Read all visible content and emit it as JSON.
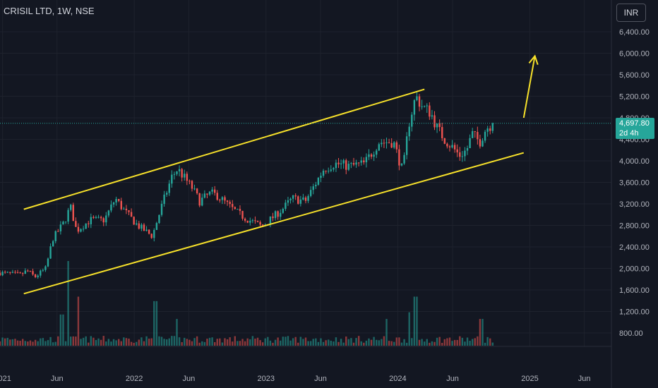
{
  "header": {
    "title": "CRISIL LTD, 1W, NSE",
    "currency": "INR"
  },
  "last_price": {
    "value": "4,697.80",
    "countdown": "2d 4h",
    "color": "#26a69a"
  },
  "colors": {
    "up": "#26a69a",
    "down": "#ef5350",
    "channel": "#f7e12a",
    "background": "#131722",
    "grid": "#1e222d"
  },
  "chart_data": {
    "type": "candlestick",
    "title": "CRISIL LTD, 1W, NSE",
    "price_ticks": [
      "6,400.00",
      "6,000.00",
      "5,600.00",
      "5,200.00",
      "4,800.00",
      "4,400.00",
      "4,000.00",
      "3,600.00",
      "3,200.00",
      "2,800.00",
      "2,400.00",
      "2,000.00",
      "1,600.00",
      "1,200.00",
      "800.00"
    ],
    "price_tick_values": [
      6400,
      6000,
      5600,
      5200,
      4800,
      4400,
      4000,
      3600,
      3200,
      2800,
      2400,
      2000,
      1600,
      1200,
      800
    ],
    "ylim": [
      800,
      6700
    ],
    "time_ticks": [
      "2021",
      "Jun",
      "2022",
      "Jun",
      "2023",
      "Jun",
      "2024",
      "Jun",
      "2025",
      "Jun"
    ],
    "time_tick_dates": [
      "2021-01-01",
      "2021-06-01",
      "2022-01-01",
      "2022-06-01",
      "2023-01-01",
      "2023-06-01",
      "2024-01-01",
      "2024-06-01",
      "2025-01-01",
      "2025-06-01"
    ],
    "xlim": [
      "2020-12-25",
      "2025-08-15"
    ],
    "close_series": [
      [
        "2020-12-25",
        1920
      ],
      [
        "2021-01-20",
        1900
      ],
      [
        "2021-02-20",
        1880
      ],
      [
        "2021-03-10",
        1960
      ],
      [
        "2021-04-01",
        1840
      ],
      [
        "2021-05-01",
        2000
      ],
      [
        "2021-05-20",
        2550
      ],
      [
        "2021-06-20",
        2850
      ],
      [
        "2021-07-08",
        3150
      ],
      [
        "2021-07-25",
        2700
      ],
      [
        "2021-09-01",
        2900
      ],
      [
        "2021-10-10",
        2900
      ],
      [
        "2021-11-10",
        3300
      ],
      [
        "2021-12-01",
        3100
      ],
      [
        "2022-01-10",
        2800
      ],
      [
        "2022-02-20",
        2600
      ],
      [
        "2022-03-20",
        3200
      ],
      [
        "2022-04-15",
        3700
      ],
      [
        "2022-05-01",
        3850
      ],
      [
        "2022-06-10",
        3500
      ],
      [
        "2022-07-01",
        3250
      ],
      [
        "2022-08-01",
        3400
      ],
      [
        "2022-08-20",
        3350
      ],
      [
        "2022-10-01",
        3100
      ],
      [
        "2022-11-01",
        2950
      ],
      [
        "2022-12-20",
        2780
      ],
      [
        "2023-01-20",
        2950
      ],
      [
        "2023-02-15",
        3100
      ],
      [
        "2023-03-15",
        3300
      ],
      [
        "2023-04-20",
        3250
      ],
      [
        "2023-05-20",
        3600
      ],
      [
        "2023-06-10",
        3850
      ],
      [
        "2023-07-10",
        3950
      ],
      [
        "2023-08-20",
        3900
      ],
      [
        "2023-10-01",
        3950
      ],
      [
        "2023-11-10",
        4350
      ],
      [
        "2023-12-20",
        4350
      ],
      [
        "2024-01-15",
        3800
      ],
      [
        "2024-02-01",
        4700
      ],
      [
        "2024-02-20",
        5200
      ],
      [
        "2024-03-10",
        5000
      ],
      [
        "2024-04-01",
        4900
      ],
      [
        "2024-04-20",
        4600
      ],
      [
        "2024-05-10",
        4400
      ],
      [
        "2024-06-01",
        4250
      ],
      [
        "2024-06-20",
        4100
      ],
      [
        "2024-07-10",
        4200
      ],
      [
        "2024-07-25",
        4500
      ],
      [
        "2024-08-15",
        4350
      ],
      [
        "2024-09-01",
        4600
      ],
      [
        "2024-09-20",
        4697.8
      ]
    ],
    "volume_series": [
      [
        "2021-07-01",
        1900
      ],
      [
        "2021-06-15",
        700
      ],
      [
        "2021-08-01",
        1100
      ],
      [
        "2022-03-01",
        1000
      ],
      [
        "2022-05-01",
        600
      ],
      [
        "2023-12-01",
        600
      ],
      [
        "2024-02-20",
        1100
      ],
      [
        "2024-02-01",
        750
      ],
      [
        "2024-08-20",
        600
      ]
    ],
    "volume_units": "relative",
    "channel": {
      "upper": [
        [
          "2021-03-01",
          3100
        ],
        [
          "2024-03-15",
          5330
        ]
      ],
      "lower": [
        [
          "2021-03-01",
          1530
        ],
        [
          "2024-12-15",
          4150
        ]
      ]
    },
    "arrow": {
      "from": [
        "2024-12-15",
        4800
      ],
      "to": [
        "2025-01-15",
        5950
      ]
    },
    "current_price_line": 4697.8
  }
}
